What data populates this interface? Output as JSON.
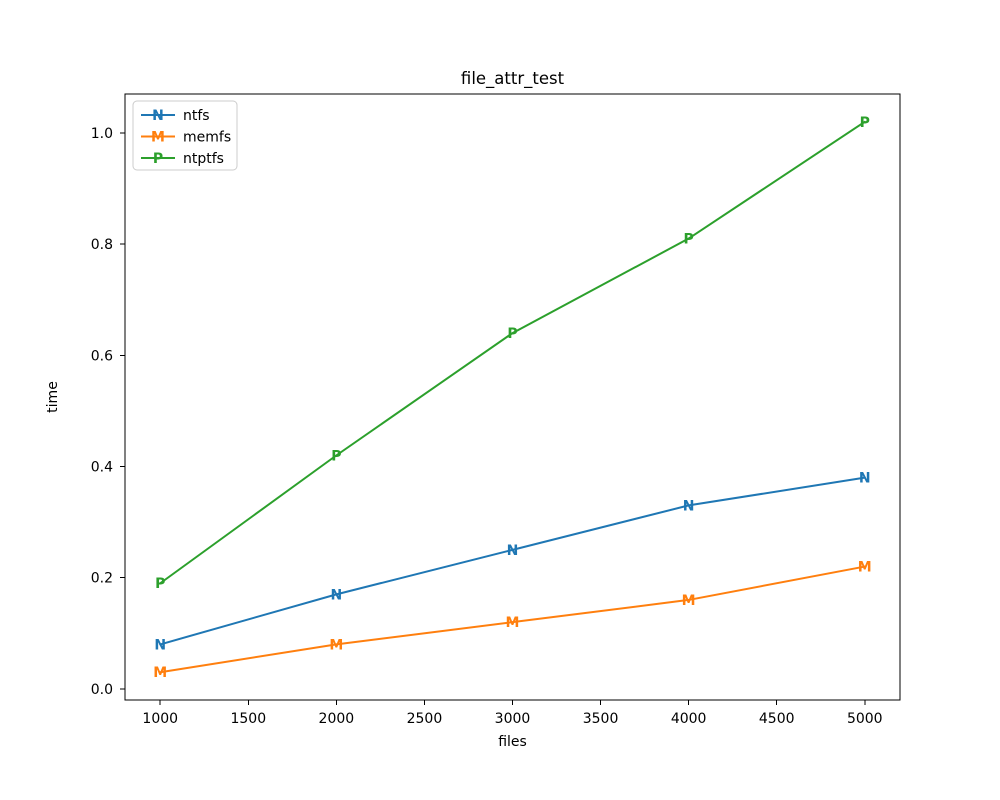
{
  "figure": {
    "background": "#ffffff"
  },
  "chart_data": {
    "type": "line",
    "title": "file_attr_test",
    "xlabel": "files",
    "ylabel": "time",
    "x": [
      1000,
      2000,
      3000,
      4000,
      5000
    ],
    "series": [
      {
        "name": "ntfs",
        "marker": "N",
        "color": "#1f77b4",
        "values": [
          0.08,
          0.17,
          0.25,
          0.33,
          0.38
        ]
      },
      {
        "name": "memfs",
        "marker": "M",
        "color": "#ff7f0e",
        "values": [
          0.03,
          0.08,
          0.12,
          0.16,
          0.22
        ]
      },
      {
        "name": "ntptfs",
        "marker": "P",
        "color": "#2ca02c",
        "values": [
          0.19,
          0.42,
          0.64,
          0.81,
          1.02
        ]
      }
    ],
    "xticks": [
      "1000",
      "1500",
      "2000",
      "2500",
      "3000",
      "3500",
      "4000",
      "4500",
      "5000"
    ],
    "yticks": [
      "0.0",
      "0.2",
      "0.4",
      "0.6",
      "0.8",
      "1.0"
    ],
    "xlim": [
      800,
      5200
    ],
    "ylim": [
      -0.02,
      1.07
    ],
    "grid": false,
    "legend_position": "upper left",
    "spine_color": "#000000",
    "legend_border_color": "#cccccc"
  }
}
